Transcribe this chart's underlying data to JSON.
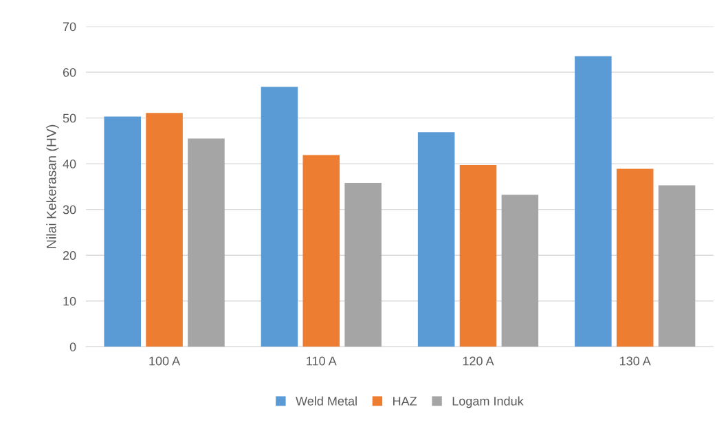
{
  "chart_data": {
    "type": "bar",
    "ylabel": "Nilai Kekerasan (HV)",
    "categories": [
      "100 A",
      "110 A",
      "120 A",
      "130 A"
    ],
    "series": [
      {
        "name": "Weld Metal",
        "color": "#5b9bd5",
        "values": [
          50.3,
          56.8,
          46.9,
          63.5
        ]
      },
      {
        "name": "HAZ",
        "color": "#ed7d31",
        "values": [
          51.1,
          41.9,
          39.7,
          38.9
        ]
      },
      {
        "name": "Logam Induk",
        "color": "#a5a5a5",
        "values": [
          45.5,
          35.8,
          33.2,
          35.3
        ]
      }
    ],
    "ylim": [
      0,
      70
    ],
    "yticks": [
      0,
      10,
      20,
      30,
      40,
      50,
      60,
      70
    ],
    "grid": "y",
    "legend": "bottom"
  }
}
